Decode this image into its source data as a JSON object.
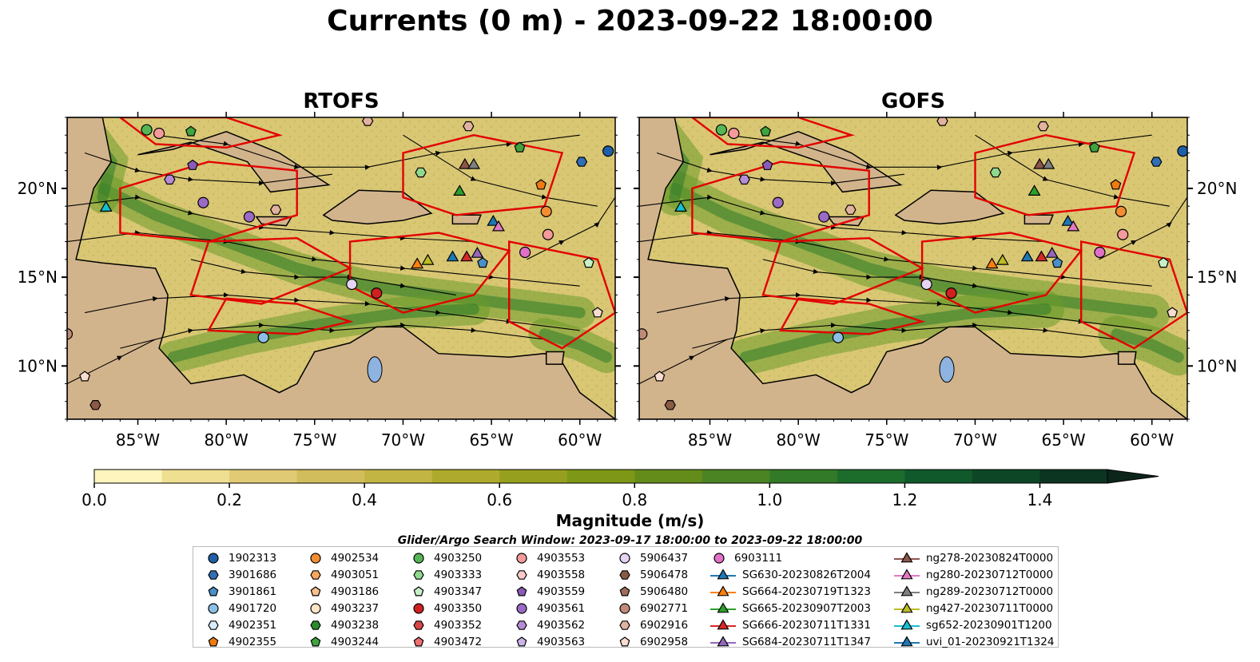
{
  "title": "Currents (0 m) - 2023-09-22 18:00:00",
  "panels": [
    {
      "title": "RTOFS"
    },
    {
      "title": "GOFS"
    }
  ],
  "chart_data": {
    "type": "heatmap",
    "title": "Currents (0 m) - 2023-09-22 18:00:00",
    "subplots": [
      "RTOFS",
      "GOFS"
    ],
    "variable": "current magnitude with streamlines",
    "xlim": [
      -89,
      -58
    ],
    "ylim": [
      7,
      24
    ],
    "x_ticks": [
      -85,
      -80,
      -75,
      -70,
      -65,
      -60
    ],
    "x_tick_labels": [
      "85°W",
      "80°W",
      "75°W",
      "70°W",
      "65°W",
      "60°W"
    ],
    "y_ticks": [
      10,
      15,
      20
    ],
    "y_tick_labels": [
      "10°N",
      "15°N",
      "20°N"
    ],
    "colorbar": {
      "label": "Magnitude (m/s)",
      "min": 0.0,
      "max": 1.5,
      "step": 0.1,
      "extend": "max",
      "ticks": [
        0.0,
        0.2,
        0.4,
        0.6,
        0.8,
        1.0,
        1.2,
        1.4
      ],
      "tick_labels": [
        "0.0",
        "0.2",
        "0.4",
        "0.6",
        "0.8",
        "1.0",
        "1.2",
        "1.4"
      ],
      "colors": [
        "#fdf5bd",
        "#efdf91",
        "#e0ca74",
        "#d2bd5d",
        "#c2b544",
        "#aeaa2d",
        "#97a01e",
        "#7e9716",
        "#648c1b",
        "#4b8422",
        "#327a27",
        "#1c6c2c",
        "#10592a",
        "#0d4626",
        "#0c3521",
        "#0c251a"
      ]
    },
    "grid": false,
    "legend_placement": "bottom",
    "search_window_note": "Glider/Argo Search Window: 2023-09-17 18:00:00 to 2023-09-22 18:00:00",
    "legend_entries": [
      {
        "name": "1902313",
        "marker": "circle",
        "color": "#1f5fa8"
      },
      {
        "name": "3901686",
        "marker": "hexagon",
        "color": "#2f6fb5"
      },
      {
        "name": "3901861",
        "marker": "pentagon",
        "color": "#4a90c8"
      },
      {
        "name": "4901720",
        "marker": "circle",
        "color": "#8cbfe6"
      },
      {
        "name": "4902351",
        "marker": "hexagon",
        "color": "#d9ecfa"
      },
      {
        "name": "4902355",
        "marker": "pentagon",
        "color": "#ef7a12"
      },
      {
        "name": "4902534",
        "marker": "circle",
        "color": "#f48c32"
      },
      {
        "name": "4903051",
        "marker": "hexagon",
        "color": "#f7a75c"
      },
      {
        "name": "4903186",
        "marker": "pentagon",
        "color": "#f8c08c"
      },
      {
        "name": "4903237",
        "marker": "circle",
        "color": "#fce5c4"
      },
      {
        "name": "4903238",
        "marker": "hexagon",
        "color": "#2b8c2b"
      },
      {
        "name": "4903244",
        "marker": "pentagon",
        "color": "#3fa33f"
      },
      {
        "name": "4903250",
        "marker": "circle",
        "color": "#56b656"
      },
      {
        "name": "4903333",
        "marker": "hexagon",
        "color": "#8fd98f"
      },
      {
        "name": "4903347",
        "marker": "pentagon",
        "color": "#c8f0c8"
      },
      {
        "name": "4903350",
        "marker": "circle",
        "color": "#d02020"
      },
      {
        "name": "4903352",
        "marker": "hexagon",
        "color": "#d84848"
      },
      {
        "name": "4903472",
        "marker": "pentagon",
        "color": "#ef7070"
      },
      {
        "name": "4903553",
        "marker": "circle",
        "color": "#f49a9a"
      },
      {
        "name": "4903558",
        "marker": "hexagon",
        "color": "#fbcaca"
      },
      {
        "name": "4903559",
        "marker": "pentagon",
        "color": "#8a5ab8"
      },
      {
        "name": "4903561",
        "marker": "circle",
        "color": "#9a6ac4"
      },
      {
        "name": "4903562",
        "marker": "hexagon",
        "color": "#b58cd8"
      },
      {
        "name": "4903563",
        "marker": "pentagon",
        "color": "#cdb3e8"
      },
      {
        "name": "5906437",
        "marker": "circle",
        "color": "#e6d4f4"
      },
      {
        "name": "5906478",
        "marker": "hexagon",
        "color": "#8a5a44"
      },
      {
        "name": "5906480",
        "marker": "pentagon",
        "color": "#a06e58"
      },
      {
        "name": "6902771",
        "marker": "circle",
        "color": "#c08a78"
      },
      {
        "name": "6902916",
        "marker": "hexagon",
        "color": "#e2b2a0"
      },
      {
        "name": "6902958",
        "marker": "pentagon",
        "color": "#f8dcd0"
      },
      {
        "name": "6903111",
        "marker": "circle",
        "color": "#e070c8"
      },
      {
        "name": "SG630-20230826T2004",
        "marker": "triangle-line",
        "color": "#1f77b4"
      },
      {
        "name": "SG664-20230719T1323",
        "marker": "triangle-line",
        "color": "#ff7f0e"
      },
      {
        "name": "SG665-20230907T2003",
        "marker": "triangle-line",
        "color": "#2ca02c"
      },
      {
        "name": "SG666-20230711T1331",
        "marker": "triangle-line",
        "color": "#d62728"
      },
      {
        "name": "SG684-20230711T1347",
        "marker": "triangle-line",
        "color": "#9467bd"
      },
      {
        "name": "ng278-20230824T0000",
        "marker": "triangle-line",
        "color": "#8c564b"
      },
      {
        "name": "ng280-20230712T0000",
        "marker": "triangle-line",
        "color": "#e377c2"
      },
      {
        "name": "ng289-20230712T0000",
        "marker": "triangle-line",
        "color": "#7f7f7f"
      },
      {
        "name": "ng427-20230711T0000",
        "marker": "triangle-line",
        "color": "#bcbd22"
      },
      {
        "name": "sg652-20230901T1200",
        "marker": "triangle-line",
        "color": "#17becf"
      },
      {
        "name": "uvi_01-20230921T1324",
        "marker": "triangle-line",
        "color": "#1f77b4"
      }
    ],
    "markers": [
      {
        "name": "4903250",
        "lon": -84.5,
        "lat": 23.3
      },
      {
        "name": "4903553",
        "lon": -83.8,
        "lat": 23.1
      },
      {
        "name": "4903244",
        "lon": -82.0,
        "lat": 23.2
      },
      {
        "name": "4903562",
        "lon": -83.2,
        "lat": 20.5
      },
      {
        "name": "4903559",
        "lon": -81.9,
        "lat": 21.3
      },
      {
        "name": "4903561",
        "lon": -81.3,
        "lat": 19.2
      },
      {
        "name": "4903561",
        "lon": -78.7,
        "lat": 18.4
      },
      {
        "name": "6902916",
        "lon": -77.2,
        "lat": 18.8
      },
      {
        "name": "sg652-20230901T1200",
        "lon": -86.8,
        "lat": 18.9
      },
      {
        "name": "4903333",
        "lon": -69.0,
        "lat": 20.9
      },
      {
        "name": "6902916",
        "lon": -66.3,
        "lat": 23.5
      },
      {
        "name": "6902916",
        "lon": -72.0,
        "lat": 23.8
      },
      {
        "name": "4903244",
        "lon": -63.4,
        "lat": 22.3
      },
      {
        "name": "3901686",
        "lon": -59.9,
        "lat": 21.5
      },
      {
        "name": "1902313",
        "lon": -58.4,
        "lat": 22.1
      },
      {
        "name": "4902355",
        "lon": -62.2,
        "lat": 20.2
      },
      {
        "name": "ng278-20230824T0000",
        "lon": -66.5,
        "lat": 21.3
      },
      {
        "name": "ng289-20230712T0000",
        "lon": -66.0,
        "lat": 21.3
      },
      {
        "name": "SG665-20230907T2003",
        "lon": -66.8,
        "lat": 19.8
      },
      {
        "name": "uvi_01-20230921T1324",
        "lon": -64.9,
        "lat": 18.1
      },
      {
        "name": "ng280-20230712T0000",
        "lon": -64.6,
        "lat": 17.8
      },
      {
        "name": "4902534",
        "lon": -61.9,
        "lat": 18.7
      },
      {
        "name": "4903553",
        "lon": -61.8,
        "lat": 17.4
      },
      {
        "name": "SG630-20230826T2004",
        "lon": -67.2,
        "lat": 16.1
      },
      {
        "name": "SG666-20230711T1331",
        "lon": -66.4,
        "lat": 16.1
      },
      {
        "name": "SG684-20230711T1347",
        "lon": -65.8,
        "lat": 16.3
      },
      {
        "name": "SG664-20230719T1323",
        "lon": -69.2,
        "lat": 15.7
      },
      {
        "name": "ng427-20230711T0000",
        "lon": -68.6,
        "lat": 15.9
      },
      {
        "name": "3901861",
        "lon": -65.5,
        "lat": 15.8
      },
      {
        "name": "6903111",
        "lon": -63.1,
        "lat": 16.4
      },
      {
        "name": "4903347",
        "lon": -59.5,
        "lat": 15.8
      },
      {
        "name": "5906437",
        "lon": -72.9,
        "lat": 14.6
      },
      {
        "name": "4903350",
        "lon": -71.5,
        "lat": 14.1
      },
      {
        "name": "6902958",
        "lon": -59.0,
        "lat": 13.0
      },
      {
        "name": "4901720",
        "lon": -77.9,
        "lat": 11.6
      },
      {
        "name": "5906478",
        "lon": -87.4,
        "lat": 7.8
      },
      {
        "name": "6902958",
        "lon": -88.0,
        "lat": 9.4
      },
      {
        "name": "6902771",
        "lon": -89.0,
        "lat": 11.8
      }
    ]
  }
}
